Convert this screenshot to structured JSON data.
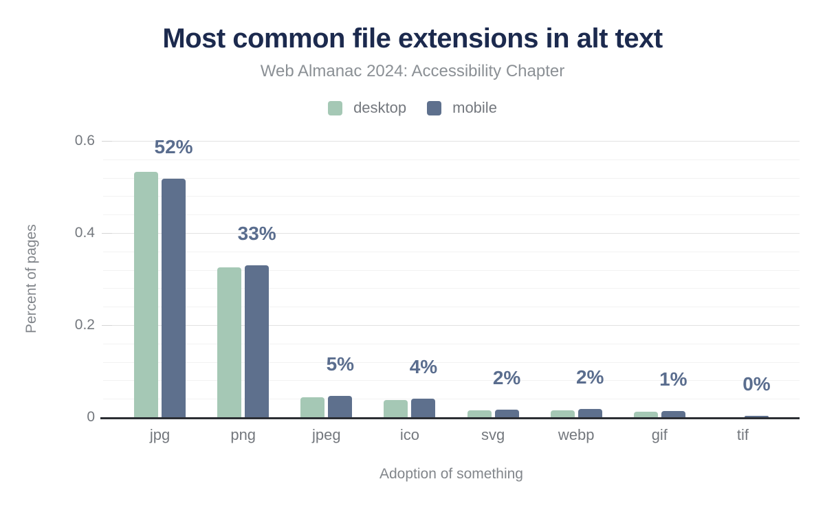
{
  "chart_data": {
    "type": "bar",
    "title": "Most common file extensions in alt text",
    "subtitle": "Web Almanac 2024: Accessibility Chapter",
    "xlabel": "Adoption of something",
    "ylabel": "Percent of pages",
    "categories": [
      "jpg",
      "png",
      "jpeg",
      "ico",
      "svg",
      "webp",
      "gif",
      "tif"
    ],
    "series": [
      {
        "name": "desktop",
        "color": "#a5c8b5",
        "values": [
          0.533,
          0.325,
          0.043,
          0.038,
          0.015,
          0.015,
          0.012,
          0.0
        ]
      },
      {
        "name": "mobile",
        "color": "#5e708d",
        "values": [
          0.518,
          0.33,
          0.047,
          0.041,
          0.017,
          0.018,
          0.013,
          0.003
        ]
      }
    ],
    "bar_labels": [
      "52%",
      "33%",
      "5%",
      "4%",
      "2%",
      "2%",
      "1%",
      "0%"
    ],
    "ylim": [
      0,
      0.6
    ],
    "yticks": [
      {
        "value": 0,
        "label": "0"
      },
      {
        "value": 0.2,
        "label": "0.2"
      },
      {
        "value": 0.4,
        "label": "0.4"
      },
      {
        "value": 0.6,
        "label": "0.6"
      }
    ],
    "minor_grid_step": 0.04,
    "grid": true,
    "legend_position": "top-center"
  },
  "colors": {
    "background": "#ffffff",
    "title": "#1c2a4e",
    "subtitle": "#8b9095",
    "axis_text": "#74787e",
    "axis_title": "#82868b",
    "value_label": "#5a6d8e",
    "grid_major": "#e2e2e2",
    "grid_minor": "#f2f2f2",
    "tick_dash": "#d4d4d4",
    "baseline": "#2b2e33",
    "desktop": "#a5c8b5",
    "mobile": "#5e708d"
  }
}
